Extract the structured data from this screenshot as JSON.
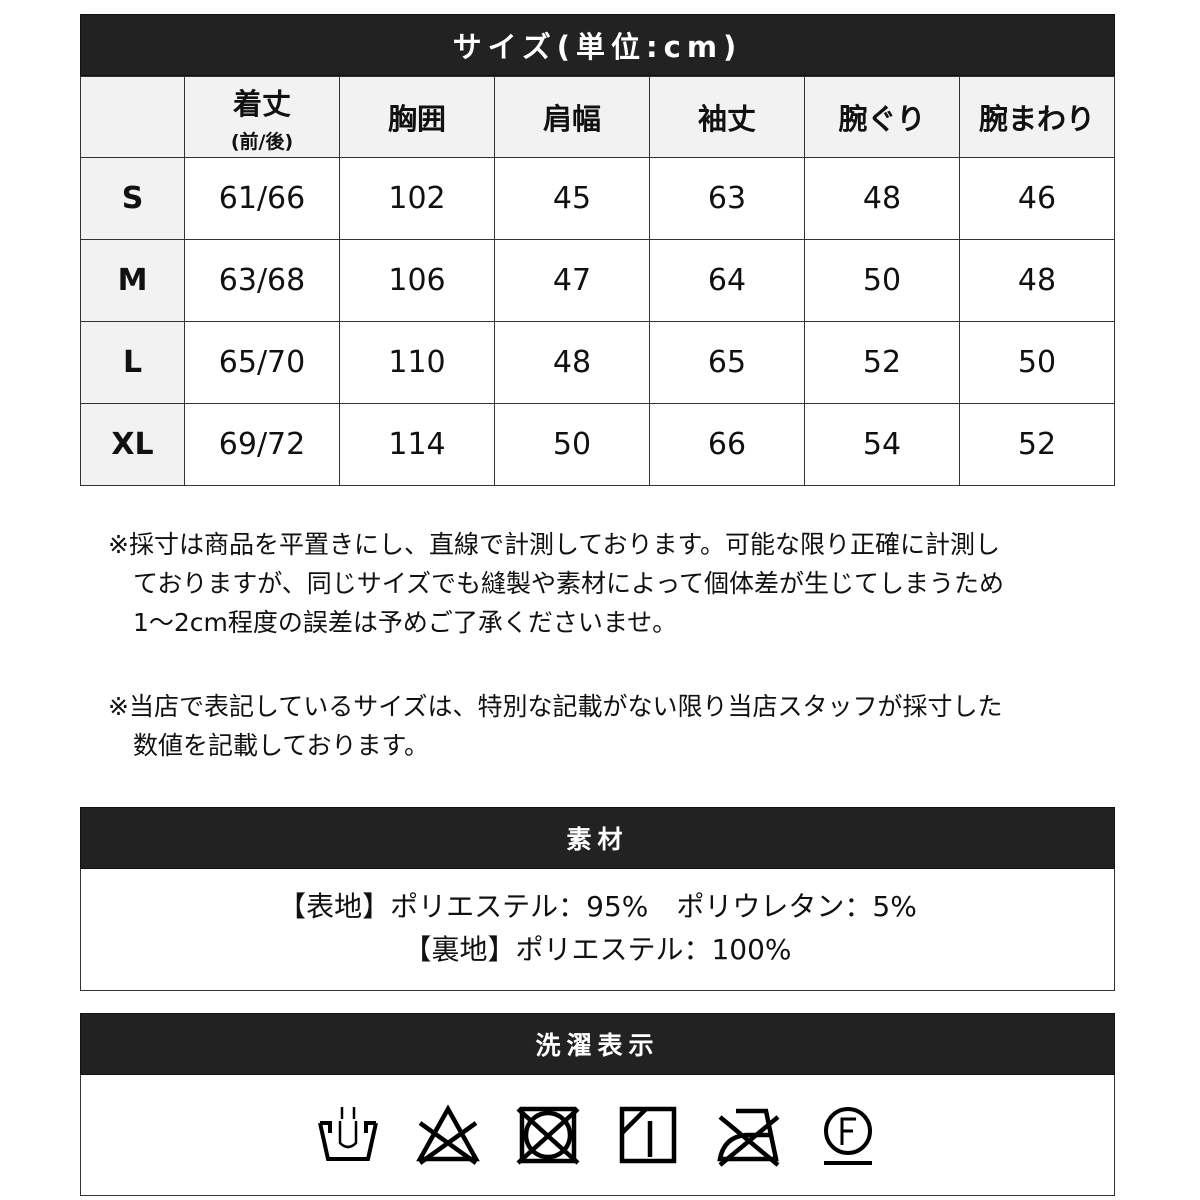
{
  "size_table": {
    "title": "サイズ(単位:cm)",
    "headers": [
      "",
      "着丈",
      "胸囲",
      "肩幅",
      "袖丈",
      "腕ぐり",
      "腕まわり"
    ],
    "length_sub": "(前/後)",
    "rows": [
      [
        "S",
        "61/66",
        "102",
        "45",
        "63",
        "48",
        "46"
      ],
      [
        "M",
        "63/68",
        "106",
        "47",
        "64",
        "50",
        "48"
      ],
      [
        "L",
        "65/70",
        "110",
        "48",
        "65",
        "52",
        "50"
      ],
      [
        "XL",
        "69/72",
        "114",
        "50",
        "66",
        "54",
        "52"
      ]
    ]
  },
  "notes": [
    [
      "※採寸は商品を平置きにし、直線で計測しております。可能な限り正確に計測し",
      "　ておりますが、同じサイズでも縫製や素材によって個体差が生じてしまうため",
      "　1～2cm程度の誤差は予めご了承くださいませ。"
    ],
    [
      "※当店で表記しているサイズは、特別な記載がない限り当店スタッフが採寸した",
      "　数値を記載しております。"
    ]
  ],
  "material": {
    "title": "素材",
    "lines": [
      "【表地】ポリエステル：95%　ポリウレタン：5%",
      "【裏地】ポリエステル：100%"
    ]
  },
  "care": {
    "title": "洗濯表示",
    "icons": [
      "hand-wash-icon",
      "no-bleach-icon",
      "no-tumble-dry-icon",
      "line-dry-shade-icon",
      "no-iron-icon",
      "dry-clean-f-icon"
    ]
  }
}
